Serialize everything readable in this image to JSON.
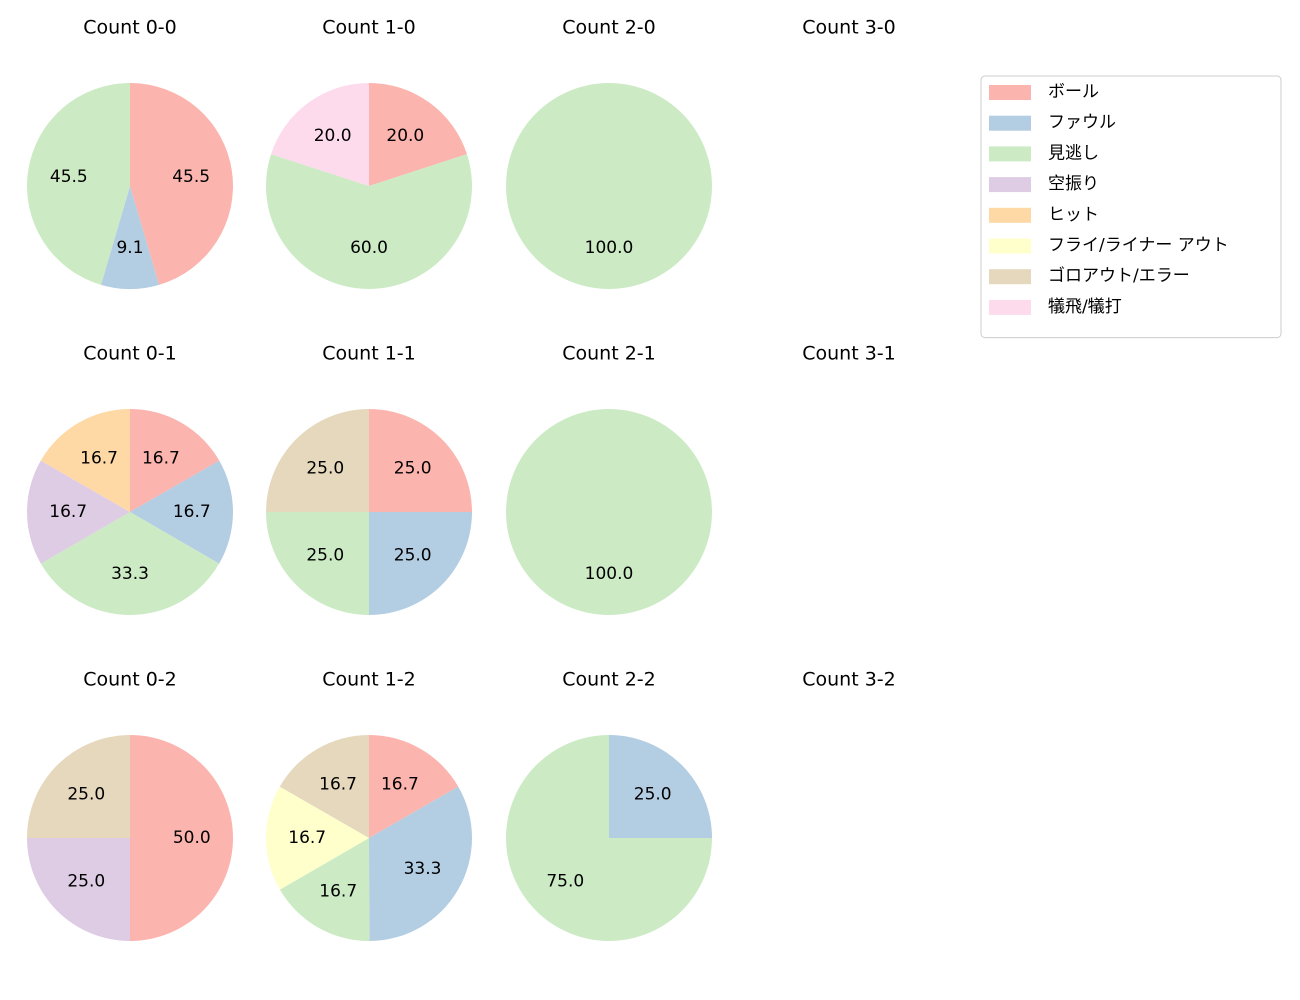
{
  "chart_data": [
    {
      "type": "pie",
      "title": "Count 0-0",
      "categories": [
        "ボール",
        "ファウル",
        "見逃し"
      ],
      "values": [
        45.5,
        9.1,
        45.5
      ],
      "value_labels": [
        "45.5",
        "9.1",
        "45.5"
      ]
    },
    {
      "type": "pie",
      "title": "Count 1-0",
      "categories": [
        "ボール",
        "見逃し",
        "犠飛/犠打"
      ],
      "values": [
        20,
        60,
        20
      ],
      "value_labels": [
        "20.0",
        "60.0",
        "20.0"
      ]
    },
    {
      "type": "pie",
      "title": "Count 2-0",
      "categories": [
        "見逃し"
      ],
      "values": [
        100
      ],
      "value_labels": [
        "100.0"
      ]
    },
    {
      "type": "pie",
      "title": "Count 3-0",
      "categories": [],
      "values": [],
      "value_labels": []
    },
    {
      "type": "pie",
      "title": "Count 0-1",
      "categories": [
        "ボール",
        "ファウル",
        "見逃し",
        "空振り",
        "ヒット"
      ],
      "values": [
        16.7,
        16.7,
        33.3,
        16.7,
        16.7
      ],
      "value_labels": [
        "16.7",
        "16.7",
        "33.3",
        "16.7",
        "16.7"
      ]
    },
    {
      "type": "pie",
      "title": "Count 1-1",
      "categories": [
        "ボール",
        "ファウル",
        "見逃し",
        "ゴロアウト/エラー"
      ],
      "values": [
        25,
        25,
        25,
        25
      ],
      "value_labels": [
        "25.0",
        "25.0",
        "25.0",
        "25.0"
      ]
    },
    {
      "type": "pie",
      "title": "Count 2-1",
      "categories": [
        "見逃し"
      ],
      "values": [
        100
      ],
      "value_labels": [
        "100.0"
      ]
    },
    {
      "type": "pie",
      "title": "Count 3-1",
      "categories": [],
      "values": [],
      "value_labels": []
    },
    {
      "type": "pie",
      "title": "Count 0-2",
      "categories": [
        "ボール",
        "空振り",
        "ゴロアウト/エラー"
      ],
      "values": [
        50,
        25,
        25
      ],
      "value_labels": [
        "50.0",
        "25.0",
        "25.0"
      ]
    },
    {
      "type": "pie",
      "title": "Count 1-2",
      "categories": [
        "ボール",
        "ファウル",
        "見逃し",
        "フライ/ライナー アウト",
        "ゴロアウト/エラー"
      ],
      "values": [
        16.7,
        33.3,
        16.7,
        16.7,
        16.7
      ],
      "value_labels": [
        "16.7",
        "33.3",
        "16.7",
        "16.7",
        "16.7"
      ]
    },
    {
      "type": "pie",
      "title": "Count 2-2",
      "categories": [
        "ファウル",
        "見逃し"
      ],
      "values": [
        25,
        75
      ],
      "value_labels": [
        "25.0",
        "75.0"
      ]
    },
    {
      "type": "pie",
      "title": "Count 3-2",
      "categories": [],
      "values": [],
      "value_labels": []
    }
  ],
  "legend": {
    "loc": "upper right",
    "labels": [
      "ボール",
      "ファウル",
      "見逃し",
      "空振り",
      "ヒット",
      "フライ/ライナー アウト",
      "ゴロアウト/エラー",
      "犠飛/犠打"
    ],
    "colors": [
      "#fbb4ae",
      "#b3cde3",
      "#ccebc5",
      "#decbe4",
      "#fed9a6",
      "#ffffcc",
      "#e5d8bd",
      "#fddaec"
    ]
  }
}
